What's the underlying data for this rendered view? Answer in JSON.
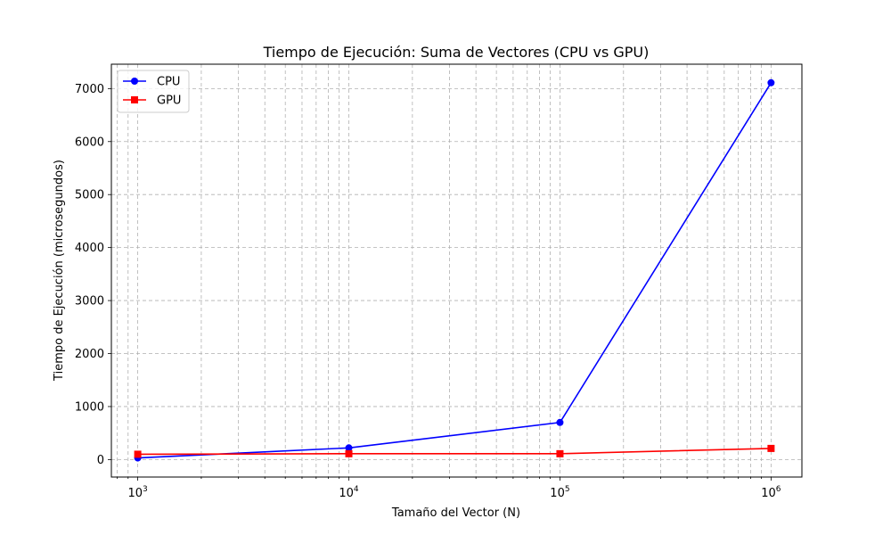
{
  "chart_data": {
    "type": "line",
    "title": "Tiempo de Ejecución: Suma de Vectores (CPU vs GPU)",
    "xlabel": "Tamaño del Vector (N)",
    "ylabel": "Tiempo de Ejecución (microsegundos)",
    "x_scale": "log",
    "x": [
      1000,
      10000,
      100000,
      1000000
    ],
    "xlim": [
      750,
      1400000
    ],
    "ylim": [
      -330,
      7460
    ],
    "x_ticks": [
      {
        "value": 1000,
        "base": "10",
        "exp": "3"
      },
      {
        "value": 10000,
        "base": "10",
        "exp": "4"
      },
      {
        "value": 100000,
        "base": "10",
        "exp": "5"
      },
      {
        "value": 1000000,
        "base": "10",
        "exp": "6"
      }
    ],
    "y_ticks": [
      0,
      1000,
      2000,
      3000,
      4000,
      5000,
      6000,
      7000
    ],
    "grid": true,
    "grid_style": "dashed, major and minor",
    "legend_position": "top-left",
    "series": [
      {
        "name": "CPU",
        "values": [
          30,
          220,
          700,
          7110
        ],
        "color": "#0000ff",
        "marker": "circle"
      },
      {
        "name": "GPU",
        "values": [
          100,
          110,
          110,
          210
        ],
        "color": "#ff0000",
        "marker": "square"
      }
    ]
  }
}
